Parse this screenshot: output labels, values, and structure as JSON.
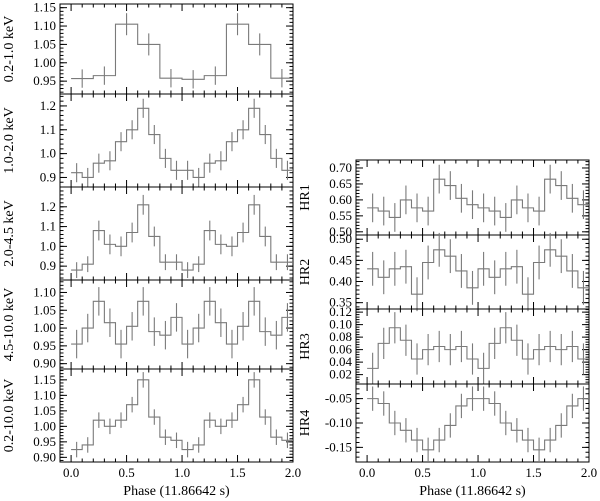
{
  "chart_data": [
    {
      "type": "line",
      "ylabel": "0.2-1.0 keV",
      "ylim": [
        0.915,
        1.16
      ],
      "yticks": [
        "0.95",
        "1.00",
        "1.05",
        "1.10",
        "1.15"
      ],
      "xlim": [
        -0.1,
        2.0
      ],
      "xticks": [],
      "xlabel": "",
      "bins": 10,
      "x": [
        0.0,
        0.2,
        0.4,
        0.6,
        0.8,
        1.0,
        1.2,
        1.4,
        1.6,
        1.8
      ],
      "values": [
        0.957,
        0.965,
        1.105,
        1.05,
        0.958,
        0.955,
        0.965,
        1.105,
        1.05,
        0.958
      ],
      "err": [
        0.025,
        0.025,
        0.03,
        0.03,
        0.025,
        0.025,
        0.025,
        0.03,
        0.03,
        0.025
      ]
    },
    {
      "type": "line",
      "ylabel": "1.0-2.0 keV",
      "ylim": [
        0.86,
        1.25
      ],
      "yticks": [
        "0.9",
        "1.0",
        "1.1",
        "1.2"
      ],
      "xlim": [
        -0.1,
        2.0
      ],
      "xticks": [],
      "xlabel": "",
      "bins": 20,
      "x": [
        0.0,
        0.1,
        0.2,
        0.3,
        0.4,
        0.5,
        0.6,
        0.7,
        0.8,
        0.9,
        1.0,
        1.1,
        1.2,
        1.3,
        1.4,
        1.5,
        1.6,
        1.7,
        1.8,
        1.9
      ],
      "values": [
        0.92,
        0.9,
        0.96,
        0.97,
        1.05,
        1.1,
        1.19,
        1.08,
        0.98,
        0.93,
        0.93,
        0.9,
        0.96,
        0.97,
        1.05,
        1.1,
        1.19,
        1.08,
        0.98,
        0.93
      ],
      "err": [
        0.04,
        0.04,
        0.04,
        0.04,
        0.04,
        0.04,
        0.04,
        0.04,
        0.04,
        0.04,
        0.04,
        0.04,
        0.04,
        0.04,
        0.04,
        0.04,
        0.04,
        0.04,
        0.04,
        0.04
      ]
    },
    {
      "type": "line",
      "ylabel": "2.0-4.5 keV",
      "ylim": [
        0.83,
        1.3
      ],
      "yticks": [
        "0.9",
        "1.0",
        "1.1",
        "1.2"
      ],
      "xlim": [
        -0.1,
        2.0
      ],
      "xticks": [],
      "xlabel": "",
      "bins": 20,
      "x": [
        0.0,
        0.1,
        0.2,
        0.3,
        0.4,
        0.5,
        0.6,
        0.7,
        0.8,
        0.9,
        1.0,
        1.1,
        1.2,
        1.3,
        1.4,
        1.5,
        1.6,
        1.7,
        1.8,
        1.9
      ],
      "values": [
        0.88,
        0.91,
        1.08,
        1.01,
        1.0,
        1.07,
        1.21,
        1.05,
        0.92,
        0.92,
        0.88,
        0.91,
        1.08,
        1.01,
        1.0,
        1.07,
        1.21,
        1.05,
        0.92,
        0.92
      ],
      "err": [
        0.04,
        0.04,
        0.05,
        0.05,
        0.05,
        0.05,
        0.05,
        0.05,
        0.04,
        0.04,
        0.04,
        0.04,
        0.05,
        0.05,
        0.05,
        0.05,
        0.05,
        0.05,
        0.04,
        0.04
      ]
    },
    {
      "type": "line",
      "ylabel": "4.5-10.0 keV",
      "ylim": [
        0.885,
        1.135
      ],
      "yticks": [
        "0.90",
        "0.95",
        "1.00",
        "1.05",
        "1.10"
      ],
      "xlim": [
        -0.1,
        2.0
      ],
      "xticks": [],
      "xlabel": "",
      "bins": 20,
      "x": [
        0.0,
        0.1,
        0.2,
        0.3,
        0.4,
        0.5,
        0.6,
        0.7,
        0.8,
        0.9,
        1.0,
        1.1,
        1.2,
        1.3,
        1.4,
        1.5,
        1.6,
        1.7,
        1.8,
        1.9
      ],
      "values": [
        0.955,
        1.0,
        1.075,
        1.015,
        0.955,
        1.005,
        1.075,
        0.99,
        0.98,
        1.03,
        0.955,
        1.0,
        1.075,
        1.015,
        0.955,
        1.005,
        1.075,
        0.99,
        0.98,
        1.03
      ],
      "err": [
        0.04,
        0.04,
        0.04,
        0.04,
        0.04,
        0.04,
        0.04,
        0.04,
        0.04,
        0.04,
        0.04,
        0.04,
        0.04,
        0.04,
        0.04,
        0.04,
        0.04,
        0.04,
        0.04,
        0.04
      ]
    },
    {
      "type": "line",
      "ylabel": "0.2-10.0 keV",
      "ylim": [
        0.885,
        1.185
      ],
      "yticks": [
        "0.90",
        "0.95",
        "1.00",
        "1.05",
        "1.10",
        "1.15"
      ],
      "xlim": [
        -0.1,
        2.0
      ],
      "xticks": [
        "0.0",
        "0.5",
        "1.0",
        "1.5",
        "2.0"
      ],
      "xlabel": "Phase (11.86642 s)",
      "bins": 20,
      "x": [
        0.0,
        0.1,
        0.2,
        0.3,
        0.4,
        0.5,
        0.6,
        0.7,
        0.8,
        0.9,
        1.0,
        1.1,
        1.2,
        1.3,
        1.4,
        1.5,
        1.6,
        1.7,
        1.8,
        1.9
      ],
      "values": [
        0.925,
        0.94,
        1.02,
        1.0,
        1.02,
        1.07,
        1.15,
        1.03,
        0.965,
        0.955,
        0.925,
        0.94,
        1.02,
        1.0,
        1.02,
        1.07,
        1.15,
        1.03,
        0.965,
        0.955
      ],
      "err": [
        0.025,
        0.025,
        0.025,
        0.025,
        0.025,
        0.025,
        0.025,
        0.025,
        0.025,
        0.025,
        0.025,
        0.025,
        0.025,
        0.025,
        0.025,
        0.025,
        0.025,
        0.025,
        0.025,
        0.025
      ]
    },
    {
      "type": "line",
      "ylabel": "HR1",
      "ylim": [
        0.49,
        0.725
      ],
      "yticks": [
        "0.50",
        "0.55",
        "0.60",
        "0.65",
        "0.70"
      ],
      "xlim": [
        -0.1,
        2.0
      ],
      "xticks": [],
      "xlabel": "",
      "bins": 20,
      "x": [
        0.0,
        0.1,
        0.2,
        0.3,
        0.4,
        0.5,
        0.6,
        0.7,
        0.8,
        0.9,
        1.0,
        1.1,
        1.2,
        1.3,
        1.4,
        1.5,
        1.6,
        1.7,
        1.8,
        1.9
      ],
      "values": [
        0.575,
        0.565,
        0.545,
        0.6,
        0.575,
        0.565,
        0.665,
        0.645,
        0.605,
        0.585,
        0.575,
        0.565,
        0.545,
        0.6,
        0.575,
        0.565,
        0.665,
        0.645,
        0.605,
        0.585
      ],
      "err": [
        0.045,
        0.045,
        0.045,
        0.045,
        0.045,
        0.045,
        0.045,
        0.045,
        0.045,
        0.045,
        0.045,
        0.045,
        0.045,
        0.045,
        0.045,
        0.045,
        0.045,
        0.045,
        0.045,
        0.045
      ]
    },
    {
      "type": "line",
      "ylabel": "HR2",
      "ylim": [
        0.335,
        0.51
      ],
      "yticks": [
        "0.35",
        "0.40",
        "0.45",
        "0.50"
      ],
      "xlim": [
        -0.1,
        2.0
      ],
      "xticks": [],
      "xlabel": "",
      "bins": 20,
      "x": [
        0.0,
        0.1,
        0.2,
        0.3,
        0.4,
        0.5,
        0.6,
        0.7,
        0.8,
        0.9,
        1.0,
        1.1,
        1.2,
        1.3,
        1.4,
        1.5,
        1.6,
        1.7,
        1.8,
        1.9
      ],
      "values": [
        0.43,
        0.41,
        0.43,
        0.435,
        0.37,
        0.445,
        0.475,
        0.46,
        0.425,
        0.385,
        0.43,
        0.41,
        0.43,
        0.435,
        0.37,
        0.445,
        0.475,
        0.46,
        0.425,
        0.385
      ],
      "err": [
        0.04,
        0.04,
        0.04,
        0.04,
        0.04,
        0.04,
        0.04,
        0.04,
        0.04,
        0.04,
        0.04,
        0.04,
        0.04,
        0.04,
        0.04,
        0.04,
        0.04,
        0.04,
        0.04,
        0.04
      ]
    },
    {
      "type": "line",
      "ylabel": "HR3",
      "ylim": [
        0.005,
        0.125
      ],
      "yticks": [
        "0.02",
        "0.04",
        "0.06",
        "0.08",
        "0.10",
        "0.12"
      ],
      "xlim": [
        -0.1,
        2.0
      ],
      "xticks": [],
      "xlabel": "",
      "bins": 20,
      "x": [
        0.0,
        0.1,
        0.2,
        0.3,
        0.4,
        0.5,
        0.6,
        0.7,
        0.8,
        0.9,
        1.0,
        1.1,
        1.2,
        1.3,
        1.4,
        1.5,
        1.6,
        1.7,
        1.8,
        1.9
      ],
      "values": [
        0.03,
        0.07,
        0.095,
        0.075,
        0.045,
        0.06,
        0.065,
        0.06,
        0.065,
        0.045,
        0.03,
        0.07,
        0.095,
        0.075,
        0.045,
        0.06,
        0.065,
        0.06,
        0.065,
        0.045
      ],
      "err": [
        0.025,
        0.025,
        0.025,
        0.025,
        0.025,
        0.025,
        0.025,
        0.025,
        0.025,
        0.025,
        0.025,
        0.025,
        0.025,
        0.025,
        0.025,
        0.025,
        0.025,
        0.025,
        0.025,
        0.025
      ]
    },
    {
      "type": "line",
      "ylabel": "HR4",
      "ylim": [
        -0.18,
        -0.02
      ],
      "yticks": [
        "-0.15",
        "-0.10",
        "-0.05"
      ],
      "xlim": [
        -0.1,
        2.0
      ],
      "xticks": [
        "0.0",
        "0.5",
        "1.0",
        "1.5",
        "2.0"
      ],
      "xlabel": "Phase (11.86642 s)",
      "bins": 20,
      "x": [
        0.0,
        0.1,
        0.2,
        0.3,
        0.4,
        0.5,
        0.6,
        0.7,
        0.8,
        0.9,
        1.0,
        1.1,
        1.2,
        1.3,
        1.4,
        1.5,
        1.6,
        1.7,
        1.8,
        1.9
      ],
      "values": [
        -0.05,
        -0.06,
        -0.1,
        -0.115,
        -0.135,
        -0.155,
        -0.135,
        -0.105,
        -0.065,
        -0.05,
        -0.05,
        -0.06,
        -0.1,
        -0.115,
        -0.135,
        -0.155,
        -0.135,
        -0.105,
        -0.065,
        -0.05
      ],
      "err": [
        0.025,
        0.025,
        0.025,
        0.025,
        0.025,
        0.025,
        0.025,
        0.025,
        0.025,
        0.025,
        0.025,
        0.025,
        0.025,
        0.025,
        0.025,
        0.025,
        0.025,
        0.025,
        0.025,
        0.025
      ]
    }
  ],
  "colors": {
    "frame": "#000000",
    "data": "#7a7a7a"
  }
}
